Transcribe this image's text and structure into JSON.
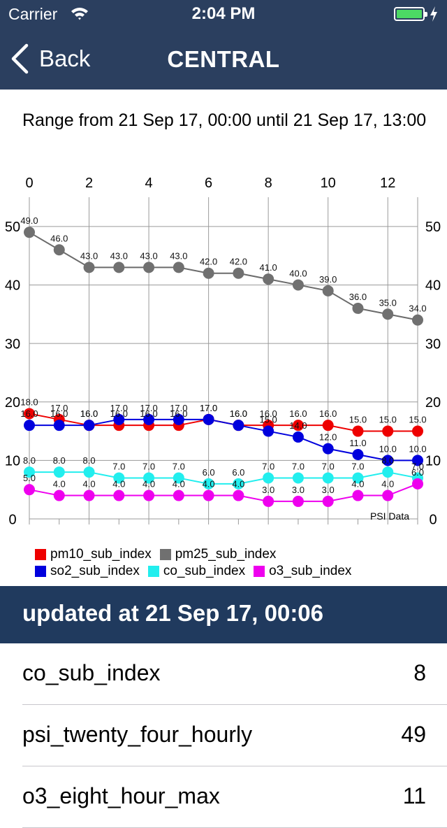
{
  "status_bar": {
    "carrier": "Carrier",
    "time": "2:04 PM"
  },
  "nav": {
    "back_label": "Back",
    "title": "CENTRAL"
  },
  "range_text": "Range from 21 Sep 17, 00:00 until 21 Sep 17, 13:00",
  "chart_data": {
    "type": "line",
    "x": [
      0,
      1,
      2,
      3,
      4,
      5,
      6,
      7,
      8,
      9,
      10,
      11,
      12,
      13
    ],
    "x_ticks": [
      0,
      2,
      4,
      6,
      8,
      10,
      12
    ],
    "ylim": [
      0,
      55
    ],
    "y_ticks": [
      0,
      10,
      20,
      30,
      40,
      50
    ],
    "description_label": "PSI Data",
    "grid": true,
    "series": [
      {
        "name": "pm25_sub_index",
        "color": "#707070",
        "line_color": "#6b6b6b",
        "values": [
          49,
          46,
          43,
          43,
          43,
          43,
          42,
          42,
          41,
          40,
          39,
          36,
          35,
          34
        ]
      },
      {
        "name": "pm10_sub_index",
        "color": "#ee0000",
        "line_color": "#ee0000",
        "values": [
          18,
          17,
          16,
          16,
          16,
          16,
          17,
          16,
          16,
          16,
          16,
          15,
          15,
          15
        ]
      },
      {
        "name": "so2_sub_index",
        "color": "#0000dd",
        "line_color": "#0000dd",
        "values": [
          16,
          16,
          16,
          17,
          17,
          17,
          17,
          16,
          15,
          14,
          12,
          11,
          10,
          10
        ]
      },
      {
        "name": "co_sub_index",
        "color": "#22eeee",
        "line_color": "#22eeee",
        "values": [
          8,
          8,
          8,
          7,
          7,
          7,
          6,
          6,
          7,
          7,
          7,
          7,
          8,
          7
        ]
      },
      {
        "name": "o3_sub_index",
        "color": "#ee00ee",
        "line_color": "#ee00ee",
        "values": [
          5,
          4,
          4,
          4,
          4,
          4,
          4,
          4,
          3,
          3,
          3,
          4,
          4,
          6
        ]
      }
    ]
  },
  "legend": [
    {
      "name": "pm10_sub_index",
      "color": "#ee0000"
    },
    {
      "name": "pm25_sub_index",
      "color": "#707070"
    },
    {
      "name": "so2_sub_index",
      "color": "#0000dd"
    },
    {
      "name": "co_sub_index",
      "color": "#22eeee"
    },
    {
      "name": "o3_sub_index",
      "color": "#ee00ee"
    }
  ],
  "updated_text": "updated at 21 Sep 17, 00:06",
  "readings": [
    {
      "label": "co_sub_index",
      "value": "8"
    },
    {
      "label": "psi_twenty_four_hourly",
      "value": "49"
    },
    {
      "label": "o3_eight_hour_max",
      "value": "11"
    }
  ]
}
